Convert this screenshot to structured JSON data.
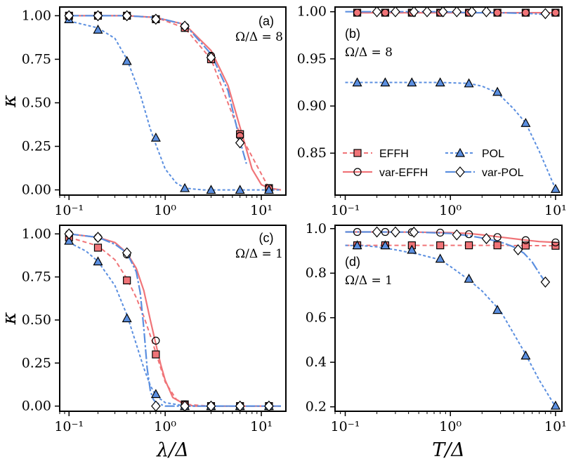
{
  "colors": {
    "effh": "#f07478",
    "pol": "#5b8fe0",
    "var_pol_marker": "#ffffff",
    "effh_marker": "#f07478",
    "pol_marker": "#5b8fe0"
  },
  "legend": {
    "items": [
      {
        "label": "EFFH",
        "series": "EFFH"
      },
      {
        "label": "var-EFFH",
        "series": "var-EFFH"
      },
      {
        "label": "POL",
        "series": "POL"
      },
      {
        "label": "var-POL",
        "series": "var-POL"
      }
    ]
  },
  "chart_data": [
    {
      "type": "line",
      "panel": "a",
      "tag": "(a)",
      "note": "Ω/Δ = 8",
      "xlabel": "",
      "ylabel": "κ",
      "xscale": "log",
      "xlim": [
        0.08,
        18
      ],
      "ylim": [
        -0.03,
        1.05
      ],
      "xticks": [
        {
          "v": 0.1,
          "label": "10⁻¹"
        },
        {
          "v": 1,
          "label": "10⁰"
        },
        {
          "v": 10,
          "label": "10¹"
        }
      ],
      "yticks": [
        {
          "v": 0,
          "label": "0.00"
        },
        {
          "v": 0.25,
          "label": "0.25"
        },
        {
          "v": 0.5,
          "label": "0.50"
        },
        {
          "v": 0.75,
          "label": "0.75"
        },
        {
          "v": 1,
          "label": "1.00"
        }
      ],
      "series": [
        {
          "name": "EFFH",
          "x": [
            0.1,
            0.2,
            0.4,
            0.8,
            1.6,
            3.0,
            6.0,
            12.0,
            16.0
          ],
          "y": [
            1.0,
            1.0,
            1.0,
            0.99,
            0.93,
            0.75,
            0.32,
            0.01,
            0.0
          ],
          "marker_x": [
            0.1,
            0.2,
            0.4,
            0.8,
            1.6,
            3.0,
            6.0,
            12.0
          ],
          "marker_y": [
            1.0,
            1.0,
            1.0,
            0.98,
            0.93,
            0.75,
            0.32,
            0.01
          ]
        },
        {
          "name": "var-EFFH",
          "x": [
            0.1,
            0.2,
            0.4,
            0.8,
            1.6,
            3.0,
            4.5,
            6.0,
            8.0,
            10.0,
            12.0,
            16.0
          ],
          "y": [
            1.0,
            1.0,
            1.0,
            0.99,
            0.95,
            0.8,
            0.6,
            0.36,
            0.12,
            0.03,
            0.01,
            0.0
          ],
          "marker_x": [
            0.1,
            0.2,
            0.4,
            0.8,
            1.6,
            3.0,
            6.0,
            12.0
          ],
          "marker_y": [
            1.0,
            1.0,
            1.0,
            0.98,
            0.94,
            0.77,
            0.31,
            0.01
          ]
        },
        {
          "name": "POL",
          "x": [
            0.1,
            0.2,
            0.3,
            0.4,
            0.55,
            0.7,
            0.8,
            1.0,
            1.3,
            1.6,
            2.5,
            3.0,
            6.0,
            12.0,
            16.0
          ],
          "y": [
            0.97,
            0.93,
            0.87,
            0.75,
            0.55,
            0.35,
            0.26,
            0.12,
            0.04,
            0.01,
            0.0,
            0.0,
            0.0,
            0.0,
            0.0
          ],
          "marker_x": [
            0.1,
            0.2,
            0.4,
            0.8,
            1.6,
            3.0,
            6.0,
            12.0
          ],
          "marker_y": [
            0.98,
            0.92,
            0.74,
            0.3,
            0.01,
            0.0,
            0.0,
            0.0
          ]
        },
        {
          "name": "var-POL",
          "x": [
            0.1,
            0.2,
            0.4,
            0.8,
            1.6,
            3.0,
            4.5,
            6.0,
            7.0
          ],
          "y": [
            1.0,
            1.0,
            1.0,
            0.99,
            0.95,
            0.78,
            0.57,
            0.28,
            0.15
          ],
          "marker_x": [
            0.1,
            0.2,
            0.4,
            0.8,
            1.6,
            3.0,
            6.0
          ],
          "marker_y": [
            1.0,
            1.0,
            1.0,
            0.98,
            0.94,
            0.76,
            0.27
          ]
        }
      ]
    },
    {
      "type": "line",
      "panel": "b",
      "tag": "(b)",
      "note": "Ω/Δ = 8",
      "xlabel": "",
      "ylabel": "",
      "xscale": "log",
      "xlim": [
        0.08,
        11.5
      ],
      "ylim": [
        0.8055,
        1.005
      ],
      "xticks": [
        {
          "v": 0.1,
          "label": "10⁻¹"
        },
        {
          "v": 1,
          "label": "10⁰"
        },
        {
          "v": 10,
          "label": "10¹"
        }
      ],
      "yticks": [
        {
          "v": 0.85,
          "label": "0.85"
        },
        {
          "v": 0.9,
          "label": "0.90"
        },
        {
          "v": 0.95,
          "label": "0.95"
        },
        {
          "v": 1.0,
          "label": "1.00"
        }
      ],
      "series": [
        {
          "name": "EFFH",
          "x": [
            0.13,
            0.24,
            0.43,
            0.8,
            1.5,
            2.8,
            5.2,
            10.0
          ],
          "y": [
            0.999,
            0.999,
            0.999,
            0.999,
            0.999,
            0.999,
            0.999,
            0.999
          ],
          "marker_x": [
            0.13,
            0.24,
            0.43,
            0.8,
            1.5,
            2.8,
            5.2,
            10.0
          ],
          "marker_y": [
            0.999,
            0.999,
            0.999,
            0.999,
            0.999,
            0.999,
            0.999,
            0.999
          ]
        },
        {
          "name": "var-EFFH",
          "x": [
            0.13,
            0.24,
            0.43,
            0.8,
            1.5,
            2.8,
            5.2,
            10.0
          ],
          "y": [
            0.999,
            0.999,
            0.999,
            0.999,
            0.999,
            0.999,
            0.999,
            0.999
          ],
          "marker_x": [
            0.13,
            0.24,
            0.43,
            0.8,
            1.5,
            2.8,
            5.2,
            10.0
          ],
          "marker_y": [
            0.999,
            0.999,
            0.999,
            0.999,
            0.999,
            0.999,
            0.999,
            0.999
          ]
        },
        {
          "name": "POL",
          "x": [
            0.1,
            0.13,
            0.24,
            0.43,
            0.8,
            1.5,
            2.0,
            2.8,
            4.0,
            5.2,
            7.0,
            10.0
          ],
          "y": [
            0.925,
            0.925,
            0.925,
            0.925,
            0.925,
            0.924,
            0.921,
            0.914,
            0.897,
            0.882,
            0.852,
            0.812
          ],
          "marker_x": [
            0.13,
            0.24,
            0.43,
            0.8,
            1.5,
            2.8,
            5.2,
            10.0
          ],
          "marker_y": [
            0.925,
            0.925,
            0.925,
            0.925,
            0.924,
            0.915,
            0.882,
            0.812
          ]
        },
        {
          "name": "var-POL",
          "x": [
            0.1,
            0.2,
            0.4,
            0.8,
            1.5,
            3.0,
            6.0,
            8.0,
            10.0
          ],
          "y": [
            1.0,
            1.0,
            1.0,
            1.0,
            0.999,
            0.999,
            0.998,
            0.997,
            0.997
          ],
          "marker_x": [
            0.2,
            0.3,
            0.45,
            0.6,
            0.85,
            1.15,
            1.6,
            2.2,
            8.0
          ],
          "marker_y": [
            1.0,
            1.0,
            1.0,
            1.0,
            1.0,
            1.0,
            1.0,
            1.0,
            0.998
          ]
        }
      ]
    },
    {
      "type": "line",
      "panel": "c",
      "tag": "(c)",
      "note": "Ω/Δ = 1",
      "xlabel": "λ/Δ",
      "ylabel": "κ",
      "xscale": "log",
      "xlim": [
        0.08,
        18
      ],
      "ylim": [
        -0.03,
        1.05
      ],
      "xticks": [
        {
          "v": 0.1,
          "label": "10⁻¹"
        },
        {
          "v": 1,
          "label": "10⁰"
        },
        {
          "v": 10,
          "label": "10¹"
        }
      ],
      "yticks": [
        {
          "v": 0,
          "label": "0.00"
        },
        {
          "v": 0.25,
          "label": "0.25"
        },
        {
          "v": 0.5,
          "label": "0.50"
        },
        {
          "v": 0.75,
          "label": "0.75"
        },
        {
          "v": 1,
          "label": "1.00"
        }
      ],
      "series": [
        {
          "name": "EFFH",
          "x": [
            0.1,
            0.2,
            0.3,
            0.4,
            0.5,
            0.6,
            0.7,
            0.8,
            1.0,
            1.3,
            1.6,
            3.0,
            6.0,
            12.0,
            16.0
          ],
          "y": [
            0.98,
            0.93,
            0.85,
            0.74,
            0.63,
            0.52,
            0.41,
            0.31,
            0.14,
            0.04,
            0.01,
            0.0,
            0.0,
            0.0,
            0.0
          ],
          "marker_x": [
            0.1,
            0.2,
            0.4,
            0.8,
            1.6,
            3.0,
            6.0,
            12.0
          ],
          "marker_y": [
            0.98,
            0.92,
            0.73,
            0.3,
            0.01,
            0.0,
            0.0,
            0.0
          ]
        },
        {
          "name": "var-EFFH",
          "x": [
            0.1,
            0.2,
            0.3,
            0.4,
            0.5,
            0.6,
            0.7,
            0.8,
            0.9,
            1.0,
            1.2,
            1.6,
            2.0,
            3.0,
            16.0
          ],
          "y": [
            1.0,
            0.98,
            0.95,
            0.89,
            0.8,
            0.67,
            0.5,
            0.36,
            0.24,
            0.15,
            0.05,
            0.01,
            0.0,
            0.0,
            0.0
          ],
          "marker_x": [
            0.1,
            0.2,
            0.4,
            0.8,
            1.6,
            3.0,
            6.0,
            12.0
          ],
          "marker_y": [
            1.0,
            0.98,
            0.88,
            0.38,
            0.01,
            0.0,
            0.0,
            0.0
          ]
        },
        {
          "name": "POL",
          "x": [
            0.1,
            0.15,
            0.2,
            0.3,
            0.4,
            0.5,
            0.6,
            0.7,
            0.8,
            1.0,
            1.3,
            1.6,
            3.0,
            6.0,
            12.0,
            16.0
          ],
          "y": [
            0.95,
            0.9,
            0.84,
            0.7,
            0.53,
            0.36,
            0.22,
            0.12,
            0.06,
            0.02,
            0.01,
            0.0,
            0.0,
            0.0,
            0.0,
            0.0
          ],
          "marker_x": [
            0.1,
            0.2,
            0.4,
            0.8,
            1.6,
            3.0,
            6.0,
            12.0
          ],
          "marker_y": [
            0.96,
            0.84,
            0.51,
            0.07,
            0.0,
            0.0,
            0.0,
            0.0
          ]
        },
        {
          "name": "var-POL",
          "x": [
            0.1,
            0.2,
            0.3,
            0.4,
            0.5,
            0.55,
            0.6,
            0.65,
            0.7,
            0.75,
            0.8,
            1.0,
            1.6,
            3.0,
            16.0
          ],
          "y": [
            1.0,
            0.98,
            0.94,
            0.89,
            0.78,
            0.66,
            0.45,
            0.22,
            0.09,
            0.04,
            0.02,
            0.0,
            0.0,
            0.0,
            0.0
          ],
          "marker_x": [
            0.1,
            0.2,
            0.4,
            0.8,
            1.6,
            3.0,
            6.0,
            12.0
          ],
          "marker_y": [
            1.0,
            0.98,
            0.89,
            0.0,
            0.0,
            0.0,
            0.0,
            0.0
          ]
        }
      ]
    },
    {
      "type": "line",
      "panel": "d",
      "tag": "(d)",
      "note": "Ω/Δ = 1",
      "xlabel": "T/Δ",
      "ylabel": "",
      "xscale": "log",
      "xlim": [
        0.08,
        11.5
      ],
      "ylim": [
        0.18,
        1.015
      ],
      "xticks": [
        {
          "v": 0.1,
          "label": "10⁻¹"
        },
        {
          "v": 1,
          "label": "10⁰"
        },
        {
          "v": 10,
          "label": "10¹"
        }
      ],
      "yticks": [
        {
          "v": 0.2,
          "label": "0.2"
        },
        {
          "v": 0.4,
          "label": "0.4"
        },
        {
          "v": 0.6,
          "label": "0.6"
        },
        {
          "v": 0.8,
          "label": "0.8"
        },
        {
          "v": 1.0,
          "label": "1.0"
        }
      ],
      "series": [
        {
          "name": "EFFH",
          "x": [
            0.1,
            0.2,
            0.5,
            1.0,
            2.0,
            5.0,
            10.0
          ],
          "y": [
            0.925,
            0.925,
            0.925,
            0.925,
            0.925,
            0.924,
            0.923
          ],
          "marker_x": [
            0.13,
            0.24,
            0.43,
            0.8,
            1.5,
            2.8,
            5.2,
            10.0
          ],
          "marker_y": [
            0.925,
            0.925,
            0.925,
            0.925,
            0.925,
            0.925,
            0.924,
            0.923
          ]
        },
        {
          "name": "var-EFFH",
          "x": [
            0.1,
            0.2,
            0.5,
            1.0,
            1.5,
            2.0,
            3.0,
            5.0,
            7.0,
            10.0
          ],
          "y": [
            0.985,
            0.985,
            0.984,
            0.982,
            0.978,
            0.972,
            0.962,
            0.949,
            0.942,
            0.938
          ],
          "marker_x": [
            0.13,
            0.24,
            0.43,
            0.8,
            1.5,
            2.8,
            5.2,
            10.0
          ],
          "marker_y": [
            0.985,
            0.985,
            0.984,
            0.982,
            0.975,
            0.962,
            0.948,
            0.938
          ]
        },
        {
          "name": "POL",
          "x": [
            0.1,
            0.15,
            0.2,
            0.3,
            0.5,
            0.8,
            1.0,
            1.5,
            2.0,
            3.0,
            5.0,
            7.0,
            10.0
          ],
          "y": [
            0.925,
            0.923,
            0.918,
            0.905,
            0.885,
            0.86,
            0.83,
            0.77,
            0.72,
            0.63,
            0.45,
            0.32,
            0.2
          ],
          "marker_x": [
            0.13,
            0.24,
            0.43,
            0.8,
            1.5,
            2.8,
            5.2,
            10.0
          ],
          "marker_y": [
            0.925,
            0.925,
            0.905,
            0.865,
            0.775,
            0.635,
            0.43,
            0.205
          ]
        },
        {
          "name": "var-POL",
          "x": [
            0.1,
            0.2,
            0.5,
            1.0,
            1.5,
            2.0,
            3.0,
            4.0,
            5.0,
            6.0,
            7.0,
            8.0
          ],
          "y": [
            0.985,
            0.985,
            0.984,
            0.978,
            0.968,
            0.958,
            0.94,
            0.918,
            0.89,
            0.85,
            0.8,
            0.76
          ],
          "marker_x": [
            0.2,
            0.3,
            0.45,
            1.15,
            2.2,
            4.4,
            8.0
          ],
          "marker_y": [
            0.985,
            0.985,
            0.984,
            0.972,
            0.955,
            0.905,
            0.76
          ]
        }
      ]
    }
  ]
}
